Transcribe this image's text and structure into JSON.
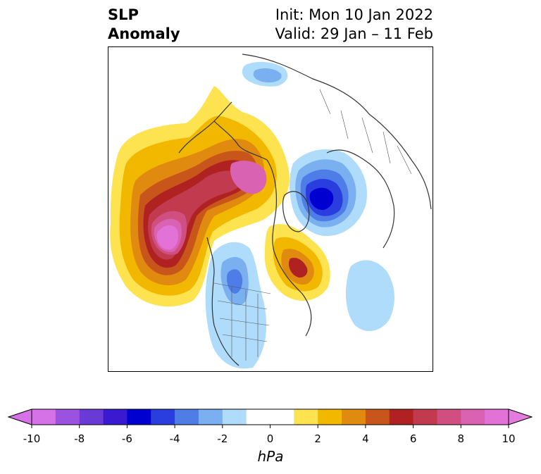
{
  "title": {
    "left_line1": "SLP",
    "left_line2": "Anomaly",
    "right_line1": "Init: Mon 10 Jan 2022",
    "right_line2": "Valid: 29 Jan – 11 Feb"
  },
  "map": {
    "projection": "north-polar-stereographic",
    "field": "sea-level-pressure anomaly",
    "features": [
      {
        "name": "north-pacific-high-anomaly",
        "sign": "positive",
        "peak_hpa": 10
      },
      {
        "name": "alaska-beaufort-high-anomaly",
        "sign": "positive",
        "peak_hpa": 9
      },
      {
        "name": "hudson-bay-labrador-high-anomaly",
        "sign": "positive",
        "peak_hpa": 6
      },
      {
        "name": "barents-kara-low-anomaly",
        "sign": "negative",
        "peak_hpa": -7
      },
      {
        "name": "western-north-america-low-anomaly",
        "sign": "negative",
        "peak_hpa": -4
      },
      {
        "name": "north-atlantic-low-anomaly",
        "sign": "negative",
        "peak_hpa": -2
      },
      {
        "name": "siberia-low-anomaly",
        "sign": "negative",
        "peak_hpa": -3
      }
    ]
  },
  "colorbar": {
    "label": "hPa",
    "ticks": [
      "-10",
      "-8",
      "-6",
      "-4",
      "-2",
      "0",
      "2",
      "4",
      "6",
      "8",
      "10"
    ],
    "min": -10,
    "max": 10,
    "step": 1,
    "extend": "both",
    "colors": [
      "#d672e8",
      "#9c52e0",
      "#6a3ad6",
      "#3a1ad0",
      "#0000d0",
      "#2a3ee0",
      "#4f7de8",
      "#7aaff0",
      "#aedcfa",
      "#ffffff",
      "#ffffff",
      "#fde350",
      "#f2b800",
      "#e08a10",
      "#c8561a",
      "#b02222",
      "#c23a4e",
      "#d14e80",
      "#da62b2",
      "#e272d6"
    ],
    "under_color": "#d672e8",
    "over_color": "#e47bdf"
  }
}
